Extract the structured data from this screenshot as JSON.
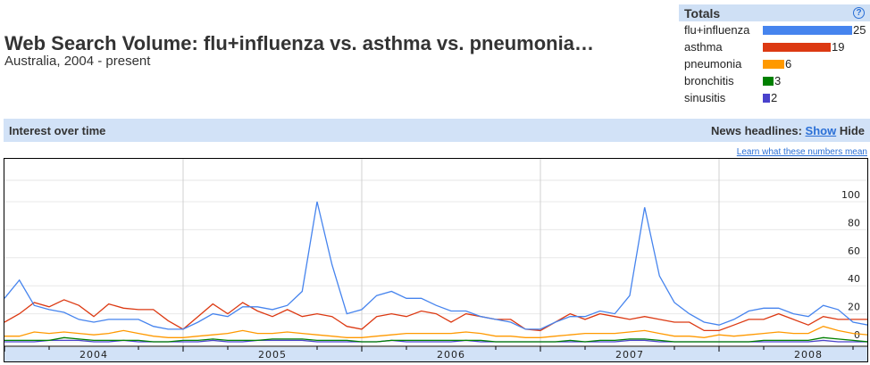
{
  "header": {
    "title": "Web Search Volume: flu+influenza vs. asthma vs. pneumonia…",
    "subtitle": "Australia, 2004 - present"
  },
  "totals": {
    "title": "Totals",
    "help_icon": "question-circle-icon",
    "max": 25,
    "items": [
      {
        "label": "flu+influenza",
        "value": 25,
        "color": "#4684ee"
      },
      {
        "label": "asthma",
        "value": 19,
        "color": "#dc3912"
      },
      {
        "label": "pneumonia",
        "value": 6,
        "color": "#ff9900"
      },
      {
        "label": "bronchitis",
        "value": 3,
        "color": "#008000"
      },
      {
        "label": "sinusitis",
        "value": 2,
        "color": "#4942cc"
      }
    ]
  },
  "interest_bar": {
    "label": "Interest over time",
    "news_label": "News headlines:",
    "show": "Show",
    "hide": "Hide"
  },
  "learn_link": "Learn what these numbers mean",
  "chart_data": {
    "type": "line",
    "x_start": "2004-01",
    "x_interval": "month",
    "xtick_labels": [
      "2004",
      "2005",
      "2006",
      "2007",
      "2008"
    ],
    "yticks": [
      0,
      20,
      40,
      60,
      80,
      100
    ],
    "ylim": [
      0,
      100
    ],
    "grid": true,
    "series": [
      {
        "name": "flu+influenza",
        "color": "#4684ee",
        "values": [
          31,
          44,
          26,
          23,
          21,
          16,
          14,
          16,
          16,
          16,
          11,
          9,
          9,
          14,
          20,
          18,
          25,
          25,
          23,
          26,
          36,
          100,
          55,
          20,
          23,
          33,
          36,
          31,
          31,
          26,
          22,
          22,
          18,
          16,
          14,
          9,
          9,
          14,
          18,
          18,
          22,
          20,
          33,
          96,
          47,
          28,
          20,
          14,
          12,
          16,
          22,
          24,
          24,
          20,
          18,
          26,
          23,
          14,
          12
        ]
      },
      {
        "name": "asthma",
        "color": "#dc3912",
        "values": [
          14,
          20,
          28,
          25,
          30,
          26,
          18,
          27,
          24,
          23,
          23,
          15,
          9,
          18,
          27,
          20,
          28,
          22,
          18,
          23,
          18,
          20,
          18,
          11,
          9,
          18,
          20,
          18,
          22,
          20,
          14,
          20,
          18,
          16,
          16,
          9,
          8,
          14,
          20,
          16,
          20,
          18,
          16,
          18,
          16,
          14,
          14,
          8,
          8,
          12,
          16,
          16,
          20,
          16,
          12,
          18,
          16,
          16,
          16
        ]
      },
      {
        "name": "pneumonia",
        "color": "#ff9900",
        "values": [
          4,
          4,
          7,
          6,
          7,
          6,
          5,
          6,
          8,
          6,
          4,
          3,
          3,
          4,
          5,
          6,
          8,
          6,
          6,
          7,
          6,
          5,
          4,
          3,
          3,
          4,
          5,
          6,
          6,
          6,
          6,
          7,
          6,
          4,
          4,
          3,
          3,
          4,
          5,
          6,
          6,
          6,
          7,
          8,
          6,
          4,
          4,
          3,
          5,
          4,
          5,
          6,
          7,
          6,
          6,
          11,
          8,
          6,
          5
        ]
      },
      {
        "name": "bronchitis",
        "color": "#008000",
        "values": [
          1,
          1,
          1,
          1,
          3,
          2,
          1,
          1,
          1,
          1,
          0,
          0,
          1,
          1,
          2,
          1,
          1,
          1,
          2,
          2,
          2,
          1,
          1,
          1,
          0,
          0,
          1,
          1,
          1,
          1,
          1,
          1,
          1,
          0,
          0,
          0,
          0,
          0,
          1,
          0,
          1,
          1,
          2,
          2,
          1,
          0,
          0,
          0,
          0,
          0,
          0,
          1,
          1,
          1,
          1,
          3,
          2,
          1,
          0
        ]
      },
      {
        "name": "sinusitis",
        "color": "#4942cc",
        "values": [
          0,
          0,
          0,
          1,
          1,
          1,
          0,
          0,
          1,
          0,
          0,
          0,
          0,
          0,
          1,
          0,
          0,
          1,
          1,
          1,
          1,
          0,
          0,
          0,
          0,
          0,
          1,
          0,
          0,
          0,
          0,
          1,
          0,
          0,
          0,
          0,
          0,
          0,
          0,
          0,
          0,
          0,
          1,
          1,
          0,
          0,
          0,
          0,
          0,
          0,
          0,
          0,
          0,
          0,
          0,
          1,
          0,
          0,
          0
        ]
      }
    ]
  }
}
